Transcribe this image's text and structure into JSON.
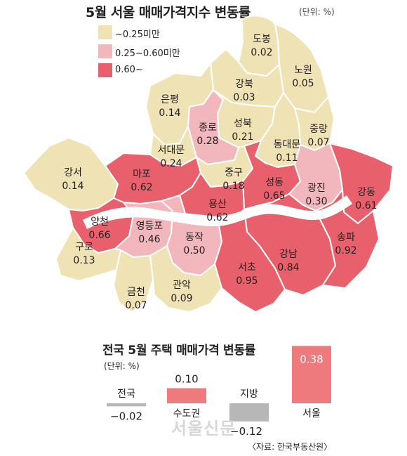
{
  "title": "5월 서울 매매가격지수 변동률",
  "unit": "(단위: %)",
  "colors": {
    "low": "#efe3b5",
    "mid": "#f2b6bd",
    "high": "#e8606c",
    "border": "#ffffff",
    "river": "#ffffff",
    "neg_bar": "#b7b7b7",
    "pos_bar": "#ef7a7e"
  },
  "legend": [
    {
      "label": "~0.25미만",
      "color_key": "low"
    },
    {
      "label": "0.25~0.60미만",
      "color_key": "mid"
    },
    {
      "label": "0.60~",
      "color_key": "high"
    }
  ],
  "districts": [
    {
      "id": "dobong",
      "name": "도봉",
      "value": "0.02",
      "color_key": "low"
    },
    {
      "id": "nowon",
      "name": "노원",
      "value": "0.05",
      "color_key": "low"
    },
    {
      "id": "gangbuk",
      "name": "강북",
      "value": "0.03",
      "color_key": "low"
    },
    {
      "id": "eunpyeong",
      "name": "은평",
      "value": "0.14",
      "color_key": "low"
    },
    {
      "id": "jongno",
      "name": "종로",
      "value": "0.28",
      "color_key": "mid"
    },
    {
      "id": "seongbuk",
      "name": "성북",
      "value": "0.21",
      "color_key": "low"
    },
    {
      "id": "jungnang",
      "name": "중랑",
      "value": "0.07",
      "color_key": "low"
    },
    {
      "id": "seodaemun",
      "name": "서대문",
      "value": "0.24",
      "color_key": "low"
    },
    {
      "id": "dongdaemun",
      "name": "동대문",
      "value": "0.11",
      "color_key": "low"
    },
    {
      "id": "gangseo",
      "name": "강서",
      "value": "0.14",
      "color_key": "low"
    },
    {
      "id": "mapo",
      "name": "마포",
      "value": "0.62",
      "color_key": "high"
    },
    {
      "id": "junggu",
      "name": "중구",
      "value": "0.18",
      "color_key": "low"
    },
    {
      "id": "seongdong",
      "name": "성동",
      "value": "0.65",
      "color_key": "high"
    },
    {
      "id": "gwangjin",
      "name": "광진",
      "value": "0.30",
      "color_key": "mid"
    },
    {
      "id": "gangdong",
      "name": "강동",
      "value": "0.61",
      "color_key": "high"
    },
    {
      "id": "yangcheon",
      "name": "양천",
      "value": "0.66",
      "color_key": "high"
    },
    {
      "id": "yongsan",
      "name": "용산",
      "value": "0.62",
      "color_key": "high"
    },
    {
      "id": "yeongdeungpo",
      "name": "영등포",
      "value": "0.46",
      "color_key": "mid"
    },
    {
      "id": "dongjak",
      "name": "동작",
      "value": "0.50",
      "color_key": "mid"
    },
    {
      "id": "guro",
      "name": "구로",
      "value": "0.13",
      "color_key": "low"
    },
    {
      "id": "gangnam",
      "name": "강남",
      "value": "0.84",
      "color_key": "high"
    },
    {
      "id": "songpa",
      "name": "송파",
      "value": "0.92",
      "color_key": "high"
    },
    {
      "id": "seocho",
      "name": "서초",
      "value": "0.95",
      "color_key": "high"
    },
    {
      "id": "geumcheon",
      "name": "금천",
      "value": "0.07",
      "color_key": "low"
    },
    {
      "id": "gwanak",
      "name": "관악",
      "value": "0.09",
      "color_key": "low"
    }
  ],
  "chart_data": {
    "type": "bar",
    "title": "전국 5월 주택 매매가격 변동률",
    "unit": "(단위: %)",
    "categories": [
      "전국",
      "수도권",
      "지방",
      "서울"
    ],
    "values": [
      -0.02,
      0.1,
      -0.12,
      0.38
    ],
    "value_labels": [
      "−0.02",
      "0.10",
      "−0.12",
      "0.38"
    ],
    "ylim": [
      -0.12,
      0.38
    ]
  },
  "source": "〈자료: 한국부동산원〉",
  "watermark": "서울신문"
}
